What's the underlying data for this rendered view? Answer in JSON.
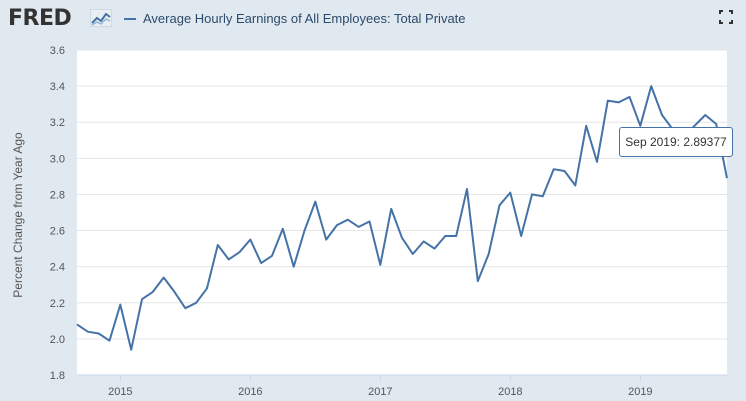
{
  "header": {
    "logo_text": "FRED",
    "series_title": "Average Hourly Earnings of All Employees: Total Private"
  },
  "colors": {
    "series_line": "#4572a7",
    "plot_background": "#ffffff",
    "page_background": "#e1e9f0",
    "gridline": "#e6e6e6"
  },
  "icons": {
    "logo": "fred-chart-icon",
    "fullscreen": "fullscreen-icon"
  },
  "tooltip": {
    "date": "Sep 2019",
    "value": "2.89377"
  },
  "chart_data": {
    "type": "line",
    "title": "",
    "xlabel": "",
    "ylabel": "Percent Change from Year Ago",
    "ylim": [
      1.8,
      3.6
    ],
    "xlim": [
      "2014-09",
      "2019-09"
    ],
    "grid": true,
    "y_ticks": [
      "1.8",
      "2.0",
      "2.2",
      "2.4",
      "2.6",
      "2.8",
      "3.0",
      "3.2",
      "3.4",
      "3.6"
    ],
    "x_ticks": [
      {
        "label": "2015",
        "date": "2015-01"
      },
      {
        "label": "2016",
        "date": "2016-01"
      },
      {
        "label": "2017",
        "date": "2017-01"
      },
      {
        "label": "2018",
        "date": "2018-01"
      },
      {
        "label": "2019",
        "date": "2019-01"
      }
    ],
    "series": [
      {
        "name": "Average Hourly Earnings of All Employees: Total Private",
        "x": [
          "2014-09",
          "2014-10",
          "2014-11",
          "2014-12",
          "2015-01",
          "2015-02",
          "2015-03",
          "2015-04",
          "2015-05",
          "2015-06",
          "2015-07",
          "2015-08",
          "2015-09",
          "2015-10",
          "2015-11",
          "2015-12",
          "2016-01",
          "2016-02",
          "2016-03",
          "2016-04",
          "2016-05",
          "2016-06",
          "2016-07",
          "2016-08",
          "2016-09",
          "2016-10",
          "2016-11",
          "2016-12",
          "2017-01",
          "2017-02",
          "2017-03",
          "2017-04",
          "2017-05",
          "2017-06",
          "2017-07",
          "2017-08",
          "2017-09",
          "2017-10",
          "2017-11",
          "2017-12",
          "2018-01",
          "2018-02",
          "2018-03",
          "2018-04",
          "2018-05",
          "2018-06",
          "2018-07",
          "2018-08",
          "2018-09",
          "2018-10",
          "2018-11",
          "2018-12",
          "2019-01",
          "2019-02",
          "2019-03",
          "2019-04",
          "2019-05",
          "2019-06",
          "2019-07",
          "2019-08",
          "2019-09"
        ],
        "values": [
          2.08,
          2.04,
          2.03,
          1.99,
          2.19,
          1.94,
          2.22,
          2.26,
          2.34,
          2.26,
          2.17,
          2.2,
          2.28,
          2.52,
          2.44,
          2.48,
          2.55,
          2.42,
          2.46,
          2.61,
          2.4,
          2.6,
          2.76,
          2.55,
          2.63,
          2.66,
          2.62,
          2.65,
          2.41,
          2.72,
          2.56,
          2.47,
          2.54,
          2.5,
          2.57,
          2.57,
          2.83,
          2.32,
          2.47,
          2.74,
          2.81,
          2.57,
          2.8,
          2.79,
          2.94,
          2.93,
          2.85,
          3.18,
          2.98,
          3.32,
          3.31,
          3.34,
          3.18,
          3.4,
          3.24,
          3.16,
          3.12,
          3.18,
          3.24,
          3.19,
          2.89
        ]
      }
    ]
  }
}
